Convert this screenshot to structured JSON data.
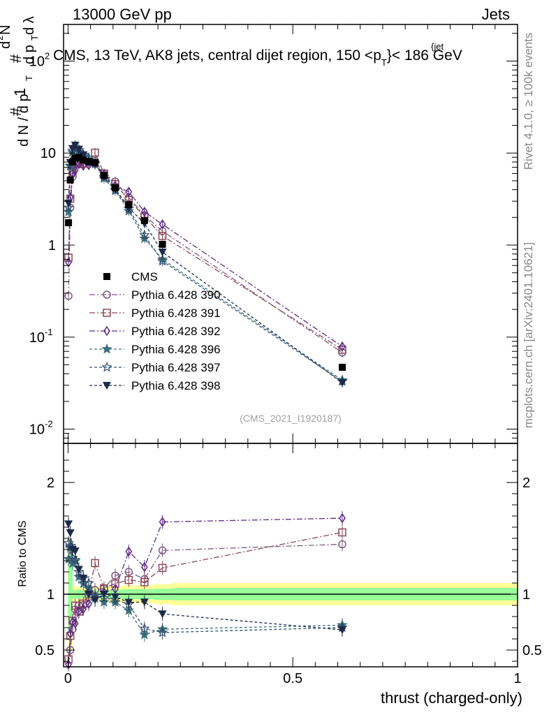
{
  "header": {
    "left": "13000 GeV pp",
    "right": "Jets"
  },
  "side_labels": {
    "rivet": "Rivet 4.1.0, ≥ 100k events",
    "mcplots": "mcplots.cern.ch [arXiv:2401.10621]"
  },
  "colors": {
    "cms": "#000000",
    "p390": "#7f5a80",
    "p391": "#8a4a57",
    "p392": "#5e2a85",
    "p396": "#3f6f7a",
    "p397": "#34506e",
    "p398": "#1d2a4d",
    "band_yellow": "#ffff99",
    "band_green": "#99ff99"
  },
  "chart_data": {
    "type": "line",
    "title": "CMS, 13 TeV, AK8 jets, central dijet region, 150 <p_T^{jet}< 186 GeV",
    "title_parts": {
      "prefix": "CMS, 13 TeV, AK8 jets, central dijet region, 150 <p",
      "sup": "{jet",
      "sub": "T",
      "suffix": "}< 186 GeV"
    },
    "analysis_id": "(CMS_2021_I1920187)",
    "xlabel": "thrust (charged-only)",
    "ylabel_main": "1 / dN/dp_T · d²N / dp_T dλ",
    "ylabel_ratio": "Ratio to CMS",
    "xlim": [
      -0.01,
      1.0
    ],
    "ylim_main": [
      0.007,
      250
    ],
    "ylim_ratio": [
      0.35,
      2.35
    ],
    "x_ticks": [
      "0",
      "0.5",
      "1"
    ],
    "y_ticks_main": [
      "10^-2",
      "10^-1",
      "1",
      "10",
      "10^2"
    ],
    "y_ticks_ratio": [
      "0.5",
      "1",
      "2"
    ],
    "x": [
      0.001,
      0.005,
      0.01,
      0.016,
      0.024,
      0.034,
      0.046,
      0.06,
      0.08,
      0.105,
      0.135,
      0.17,
      0.21,
      0.61
    ],
    "cms": {
      "name": "CMS",
      "values": [
        1.75,
        5.1,
        8.0,
        8.8,
        9.0,
        8.4,
        8.1,
        7.9,
        5.7,
        4.2,
        2.75,
        1.85,
        1.02,
        0.047
      ]
    },
    "uncertainty_band": {
      "x_edges": [
        0.0,
        0.01,
        0.03,
        0.07,
        0.12,
        0.19,
        0.23,
        1.0
      ],
      "green_half_width": [
        0.35,
        0.04,
        0.035,
        0.04,
        0.045,
        0.05,
        0.055,
        0.055
      ],
      "yellow_half_width": [
        0.5,
        0.07,
        0.06,
        0.07,
        0.08,
        0.09,
        0.1,
        0.1
      ]
    },
    "series": [
      {
        "name": "Pythia 6.428 390",
        "key": "p390",
        "marker": "circle-open",
        "dash": "8,3,2,3",
        "values": [
          0.28,
          2.55,
          5.5,
          7.6,
          8.1,
          7.6,
          7.9,
          8.2,
          6.0,
          4.9,
          3.3,
          2.1,
          1.42,
          0.068
        ]
      },
      {
        "name": "Pythia 6.428 391",
        "key": "p391",
        "marker": "square-open",
        "dash": "8,3,2,3",
        "values": [
          0.73,
          3.2,
          6.1,
          7.9,
          7.6,
          7.7,
          8.1,
          10.1,
          6.0,
          4.6,
          3.1,
          2.05,
          1.26,
          0.073
        ]
      },
      {
        "name": "Pythia 6.428 392",
        "key": "p392",
        "marker": "diamond-open",
        "dash": "8,3,2,3",
        "values": [
          0.65,
          3.3,
          6.0,
          6.5,
          7.6,
          7.3,
          7.4,
          7.7,
          5.8,
          4.4,
          3.8,
          2.3,
          1.68,
          0.079
        ]
      },
      {
        "name": "Pythia 6.428 396",
        "key": "p396",
        "marker": "star-filled",
        "dash": "4,3",
        "values": [
          2.3,
          7.2,
          10.2,
          11.4,
          10.4,
          9.2,
          8.5,
          7.6,
          5.3,
          3.9,
          2.35,
          1.18,
          0.7,
          0.034
        ]
      },
      {
        "name": "Pythia 6.428 397",
        "key": "p397",
        "marker": "star-open",
        "dash": "4,3",
        "values": [
          2.55,
          7.3,
          10.6,
          11.5,
          10.8,
          9.6,
          8.9,
          7.8,
          5.5,
          4.0,
          2.5,
          1.28,
          0.67,
          0.033
        ]
      },
      {
        "name": "Pythia 6.428 398",
        "key": "p398",
        "marker": "triangle-down-filled",
        "dash": "4,3",
        "values": [
          2.85,
          7.9,
          11.2,
          12.2,
          11.0,
          9.6,
          8.1,
          7.5,
          5.7,
          4.1,
          2.55,
          1.72,
          0.84,
          0.032
        ]
      }
    ]
  }
}
